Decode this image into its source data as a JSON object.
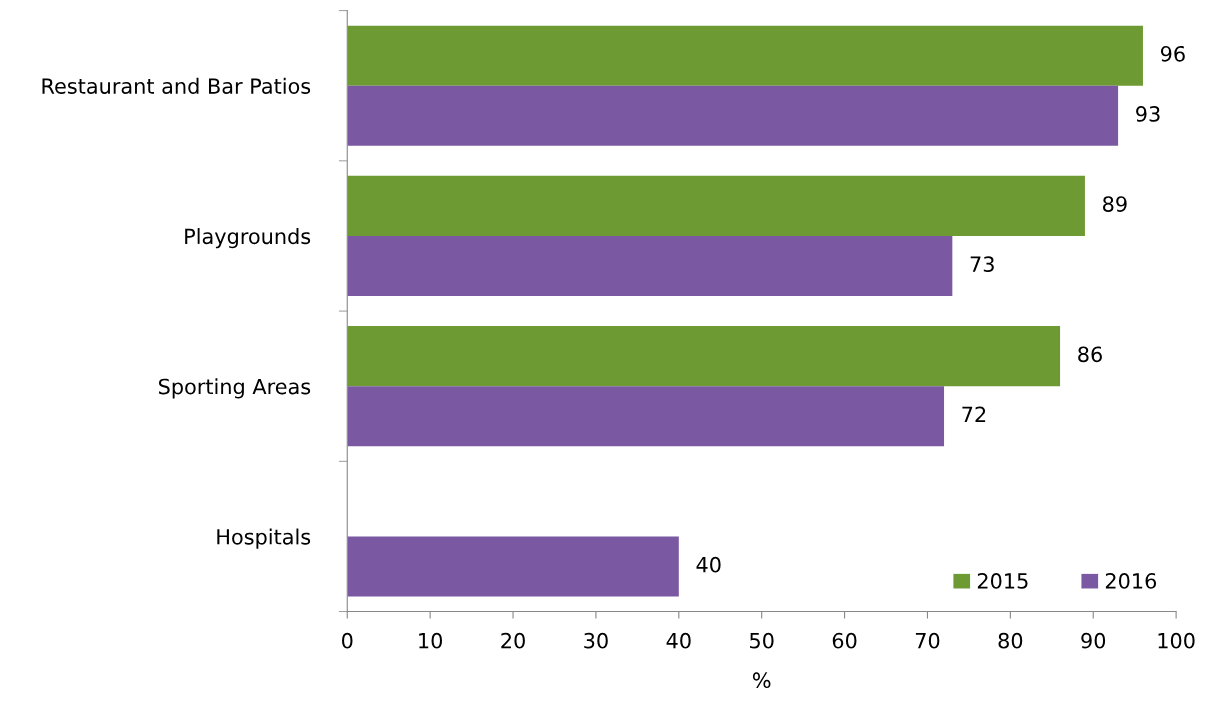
{
  "chart_data": {
    "type": "bar",
    "orientation": "horizontal",
    "xlabel": "%",
    "categories": [
      "Restaurant and Bar Patios",
      "Playgrounds",
      "Sporting Areas",
      "Hospitals"
    ],
    "series": [
      {
        "name": "2015",
        "color": "#6e9a34",
        "values": [
          96,
          89,
          86,
          null
        ]
      },
      {
        "name": "2016",
        "color": "#7a58a2",
        "values": [
          93,
          73,
          72,
          40
        ]
      }
    ],
    "xlim": [
      0,
      100
    ],
    "xticks": [
      0,
      10,
      20,
      30,
      40,
      50,
      60,
      70,
      80,
      90,
      100
    ],
    "data_labels": true,
    "legend": "bottom right",
    "grid": false
  }
}
